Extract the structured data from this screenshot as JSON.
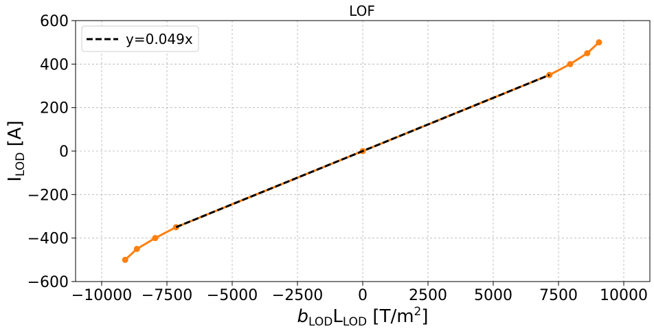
{
  "chart_data": {
    "type": "line",
    "title": "LOF",
    "xlabel": {
      "main": "b",
      "main_sub": "LOD",
      "mid": "L",
      "mid_sub": "LOD",
      "unit_pre": " [T/m",
      "unit_sup": "2",
      "unit_post": "]"
    },
    "ylabel": {
      "main": "I",
      "sub": "LOD",
      "unit": " [A]"
    },
    "xlim": [
      -11000,
      11000
    ],
    "ylim": [
      -600,
      600
    ],
    "xticks": [
      -10000,
      -7500,
      -5000,
      -2500,
      0,
      2500,
      5000,
      7500,
      10000
    ],
    "xtick_labels": [
      "−10000",
      "−7500",
      "−5000",
      "−2500",
      "0",
      "2500",
      "5000",
      "7500",
      "10000"
    ],
    "yticks": [
      -600,
      -400,
      -200,
      0,
      200,
      400,
      600
    ],
    "ytick_labels": [
      "−600",
      "−400",
      "−200",
      "0",
      "200",
      "400",
      "600"
    ],
    "grid": true,
    "legend_position": "top-left",
    "series": [
      {
        "name": "",
        "style": "solid-marker",
        "color": "#ff7f0e",
        "x": [
          -9100,
          -8650,
          -7950,
          -7150,
          0,
          7150,
          7950,
          8600,
          9050
        ],
        "y": [
          -500,
          -450,
          -400,
          -350,
          0,
          350,
          400,
          450,
          500
        ]
      },
      {
        "name": "y=0.049x",
        "style": "dashed",
        "color": "#000000",
        "x": [
          -7150,
          7150
        ],
        "y": [
          -350,
          350
        ]
      }
    ]
  }
}
